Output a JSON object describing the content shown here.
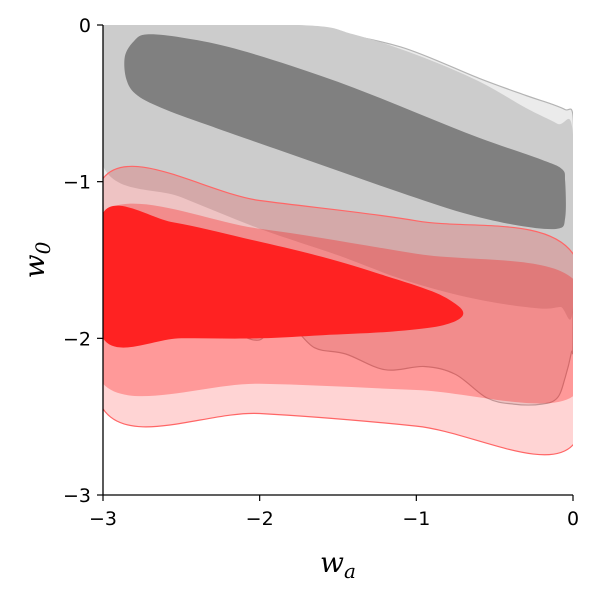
{
  "chart_data": {
    "type": "area",
    "xlabel": "w",
    "xlabel_sub": "a",
    "ylabel": "w",
    "ylabel_sub": "0",
    "xlim": [
      -3,
      0
    ],
    "ylim": [
      -3,
      0
    ],
    "xticks": [
      -3,
      -2,
      -1,
      0
    ],
    "yticks": [
      -3,
      -2,
      -1,
      0
    ],
    "xtick_labels": [
      "−3",
      "−2",
      "−1",
      "0"
    ],
    "ytick_labels": [
      "−3",
      "−2",
      "−1",
      "0"
    ],
    "grid": false,
    "series": [
      {
        "id": "grey-2sigma",
        "fill": "#ebebeb",
        "stroke": "#b4b4b4",
        "stroke_width": 1.2,
        "polygon": [
          [
            -3,
            0
          ],
          [
            -2.03,
            0
          ],
          [
            -1.6,
            -0.04
          ],
          [
            -1.1,
            -0.14
          ],
          [
            -0.6,
            -0.34
          ],
          [
            -0.3,
            -0.45
          ],
          [
            -0.15,
            -0.5
          ],
          [
            -0.05,
            -0.54
          ],
          [
            0,
            -0.58
          ],
          [
            0,
            -1.0
          ],
          [
            0,
            -2.0
          ],
          [
            -0.01,
            -2.09
          ],
          [
            -0.05,
            -2.25
          ],
          [
            -0.1,
            -2.38
          ],
          [
            -0.2,
            -2.42
          ],
          [
            -0.38,
            -2.42
          ],
          [
            -0.55,
            -2.38
          ],
          [
            -0.75,
            -2.23
          ],
          [
            -0.95,
            -2.18
          ],
          [
            -1.2,
            -2.2
          ],
          [
            -1.45,
            -2.1
          ],
          [
            -1.65,
            -2.06
          ],
          [
            -1.8,
            -1.92
          ],
          [
            -1.92,
            -1.93
          ],
          [
            -2.0,
            -2.01
          ],
          [
            -2.12,
            -1.98
          ],
          [
            -2.3,
            -1.87
          ],
          [
            -2.55,
            -1.83
          ],
          [
            -2.8,
            -1.8
          ],
          [
            -2.92,
            -1.55
          ],
          [
            -2.98,
            -1.3
          ],
          [
            -3,
            -1.15
          ]
        ]
      },
      {
        "id": "grey-1sigma",
        "fill": "#cccccc",
        "polygon": [
          [
            -3,
            0
          ],
          [
            -1.75,
            0
          ],
          [
            -1.4,
            -0.06
          ],
          [
            -1.0,
            -0.19
          ],
          [
            -0.6,
            -0.36
          ],
          [
            -0.3,
            -0.53
          ],
          [
            -0.1,
            -0.63
          ],
          [
            0,
            -0.7
          ],
          [
            0,
            -1.8
          ],
          [
            -0.08,
            -1.8
          ],
          [
            -0.2,
            -1.81
          ],
          [
            -0.45,
            -1.78
          ],
          [
            -0.75,
            -1.72
          ],
          [
            -1.1,
            -1.62
          ],
          [
            -1.5,
            -1.47
          ],
          [
            -2.0,
            -1.3
          ],
          [
            -2.5,
            -1.1
          ],
          [
            -3,
            -0.9
          ]
        ]
      },
      {
        "id": "grey-core",
        "fill": "#808080",
        "polygon": [
          [
            -2.72,
            -0.06
          ],
          [
            -2.5,
            -0.08
          ],
          [
            -2.2,
            -0.14
          ],
          [
            -1.8,
            -0.26
          ],
          [
            -1.4,
            -0.4
          ],
          [
            -1.0,
            -0.56
          ],
          [
            -0.6,
            -0.72
          ],
          [
            -0.2,
            -0.86
          ],
          [
            -0.07,
            -0.92
          ],
          [
            -0.05,
            -1.0
          ],
          [
            -0.05,
            -1.23
          ],
          [
            -0.1,
            -1.3
          ],
          [
            -0.35,
            -1.28
          ],
          [
            -0.7,
            -1.2
          ],
          [
            -1.1,
            -1.07
          ],
          [
            -1.5,
            -0.93
          ],
          [
            -1.9,
            -0.79
          ],
          [
            -2.3,
            -0.65
          ],
          [
            -2.6,
            -0.54
          ],
          [
            -2.78,
            -0.45
          ],
          [
            -2.85,
            -0.35
          ],
          [
            -2.86,
            -0.2
          ],
          [
            -2.8,
            -0.1
          ]
        ]
      },
      {
        "id": "red-2sigma",
        "fill": "#ff0000",
        "fill_opacity": 0.17,
        "stroke": "#ff6666",
        "stroke_width": 1.2,
        "polygon": [
          [
            -3,
            -0.98
          ],
          [
            -2.0,
            -1.12
          ],
          [
            -1.0,
            -1.25
          ],
          [
            0,
            -1.46
          ],
          [
            0,
            -2.68
          ],
          [
            -1.0,
            -2.56
          ],
          [
            -2.0,
            -2.48
          ],
          [
            -3,
            -2.45
          ]
        ]
      },
      {
        "id": "red-1sigma",
        "fill": "#ff0000",
        "fill_opacity": 0.28,
        "polygon": [
          [
            -3,
            -1.2
          ],
          [
            -2.0,
            -1.3
          ],
          [
            -1.0,
            -1.46
          ],
          [
            0,
            -1.62
          ],
          [
            0,
            -2.37
          ],
          [
            -1.0,
            -2.33
          ],
          [
            -2.0,
            -2.29
          ],
          [
            -3,
            -2.29
          ]
        ]
      },
      {
        "id": "red-core",
        "fill": "#ff2222",
        "polygon": [
          [
            -3,
            -1.2
          ],
          [
            -2.55,
            -1.26
          ],
          [
            -2.1,
            -1.36
          ],
          [
            -1.6,
            -1.48
          ],
          [
            -1.2,
            -1.6
          ],
          [
            -0.9,
            -1.7
          ],
          [
            -0.75,
            -1.78
          ],
          [
            -0.7,
            -1.84
          ],
          [
            -0.75,
            -1.89
          ],
          [
            -0.9,
            -1.93
          ],
          [
            -1.2,
            -1.96
          ],
          [
            -1.6,
            -1.98
          ],
          [
            -2.0,
            -2.0
          ],
          [
            -2.5,
            -2.0
          ],
          [
            -3,
            -2.0
          ]
        ]
      }
    ]
  }
}
